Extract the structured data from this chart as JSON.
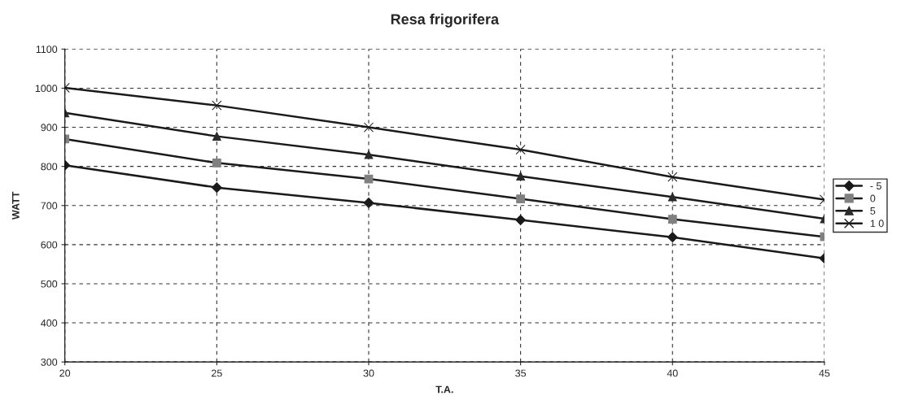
{
  "chart_data": {
    "type": "line",
    "title": "Resa frigorifera",
    "xlabel": "T.A.",
    "ylabel": "WATT",
    "x": [
      20,
      25,
      30,
      35,
      40,
      45
    ],
    "series": [
      {
        "name": "- 5",
        "color": "#1a1a1a",
        "marker": "diamond",
        "values": [
          803,
          746,
          707,
          663,
          619,
          565
        ]
      },
      {
        "name": "0",
        "color": "#808080",
        "marker": "square",
        "values": [
          870,
          809,
          768,
          717,
          665,
          620
        ]
      },
      {
        "name": "5",
        "color": "#2a2a2a",
        "marker": "triangle",
        "values": [
          937,
          877,
          830,
          775,
          722,
          666
        ]
      },
      {
        "name": "1 0",
        "color": "#1a1a1a",
        "marker": "cross",
        "values": [
          1001,
          956,
          900,
          843,
          773,
          715
        ]
      }
    ],
    "xlim": [
      20,
      45
    ],
    "xticks": [
      20,
      25,
      30,
      35,
      40,
      45
    ],
    "ylim": [
      300,
      1100
    ],
    "yticks": [
      300,
      400,
      500,
      600,
      700,
      800,
      900,
      1000,
      1100
    ],
    "grid": true,
    "legend": "right",
    "line_style": "solid"
  }
}
